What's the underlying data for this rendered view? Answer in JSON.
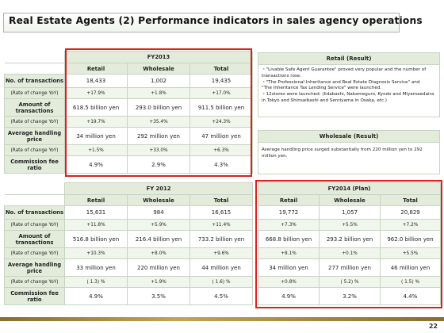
{
  "title": "Real Estate Agents (2)  Performance indicators in sales agency operations",
  "page_number": "22",
  "columns": [
    "Retail",
    "Wholesale",
    "Total"
  ],
  "row_labels": [
    "No. of transactions",
    "(Rate of change YoY)",
    "Amount of transactions",
    "(Rate of change YoY)",
    "Average handling price",
    "(Rate of change YoY)",
    "Commission fee ratio"
  ],
  "fy2013": {
    "header": "FY2013",
    "rows": [
      [
        "18,433",
        "1,002",
        "19,435"
      ],
      [
        "+17.9%",
        "+1.8%",
        "+17.0%"
      ],
      [
        "618.5 billion yen",
        "293.0 billion yen",
        "911.5 billion yen"
      ],
      [
        "+19.7%",
        "+35.4%",
        "+24.3%"
      ],
      [
        "34 million yen",
        "292 million yen",
        "47 million yen"
      ],
      [
        "+1.5%",
        "+33.0%",
        "+6.3%"
      ],
      [
        "4.9%",
        "2.9%",
        "4.3%"
      ]
    ]
  },
  "fy2012": {
    "header": "FY 2012",
    "rows": [
      [
        "15,631",
        "984",
        "16,615"
      ],
      [
        "+11.8%",
        "+5.9%",
        "+11.4%"
      ],
      [
        "516.8 billion yen",
        "216.4 billion yen",
        "733.2 billion yen"
      ],
      [
        "+10.3%",
        "+8.0%",
        "+9.6%"
      ],
      [
        "33 million yen",
        "220 million yen",
        "44 million yen"
      ],
      [
        "( 1.3) %",
        "+1.9%",
        "( 1.6) %"
      ],
      [
        "4.9%",
        "3.5%",
        "4.5%"
      ]
    ]
  },
  "fy2014": {
    "header": "FY2014 (Plan)",
    "rows": [
      [
        "19,772",
        "1,057",
        "20,829"
      ],
      [
        "+7.3%",
        "+5.5%",
        "+7.2%"
      ],
      [
        "668.8 billion yen",
        "293.2 billion yen",
        "962.0 billion yen"
      ],
      [
        "+8.1%",
        "+0.1%",
        "+5.5%"
      ],
      [
        "34 million yen",
        "277 million yen",
        "46 million yen"
      ],
      [
        "+0.8%",
        "( 5.2) %",
        "( 1.5) %"
      ],
      [
        "4.9%",
        "3.2%",
        "4.4%"
      ]
    ]
  },
  "retail_result": {
    "header": "Retail (Result)",
    "lines": [
      "・\"Livable Safe Agent Guarantee\" proved very popular and the number of",
      "  transactions rose.",
      "・\"The Professional Inheritance and Real Estate Diagnosis Service\" and",
      "  \"The Inheritance Tax Lending Service\" were launched.",
      "・12stores were launched: (Iidabashi, Nakameguro, Kyodo and Miyamaedaira",
      "  in Tokyo and Shinsaibashi and Senriyama in Osaka, etc.)"
    ]
  },
  "wholesale_result": {
    "header": "Wholesale (Result)",
    "lines": [
      "Average handling price surged substantially from 220 million yen to 292",
      "million yen."
    ]
  },
  "colors": {
    "highlight_border": "#d8231c",
    "header_fill": "#e3ecdb",
    "grid_line": "#c7d3c2"
  }
}
